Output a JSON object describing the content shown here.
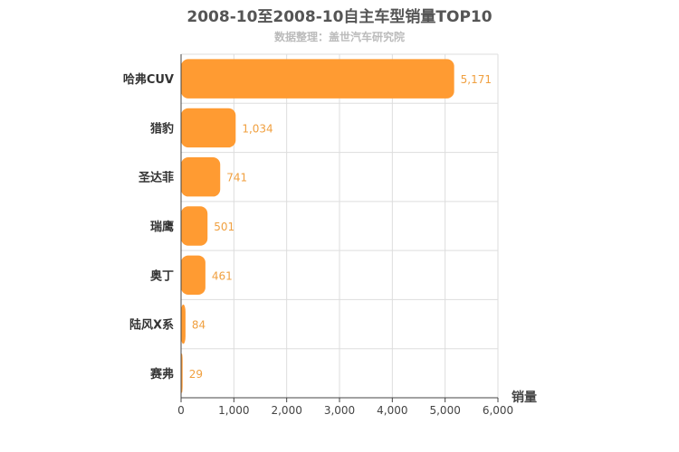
{
  "chart_data": {
    "type": "bar",
    "orientation": "horizontal",
    "title": "2008-10至2008-10自主车型销量TOP10",
    "subtitle": "数据整理：盖世汽车研究院",
    "categories": [
      "哈弗CUV",
      "猎豹",
      "圣达菲",
      "瑞鹰",
      "奥丁",
      "陆风X系",
      "赛弗"
    ],
    "values": [
      5171,
      1034,
      741,
      501,
      461,
      84,
      29
    ],
    "value_labels": [
      "5,171",
      "1,034",
      "741",
      "501",
      "461",
      "84",
      "29"
    ],
    "xlim": [
      0,
      6000
    ],
    "x_ticks": [
      0,
      1000,
      2000,
      3000,
      4000,
      5000,
      6000
    ],
    "x_tick_labels": [
      "0",
      "1,000",
      "2,000",
      "3,000",
      "4,000",
      "5,000",
      "6,000"
    ],
    "value_axis_label": "销量",
    "grid": true,
    "colors": {
      "bar": "#ff9b32",
      "value_label": "#f0a040",
      "grid": "#dddddd",
      "axis": "#444444"
    }
  }
}
